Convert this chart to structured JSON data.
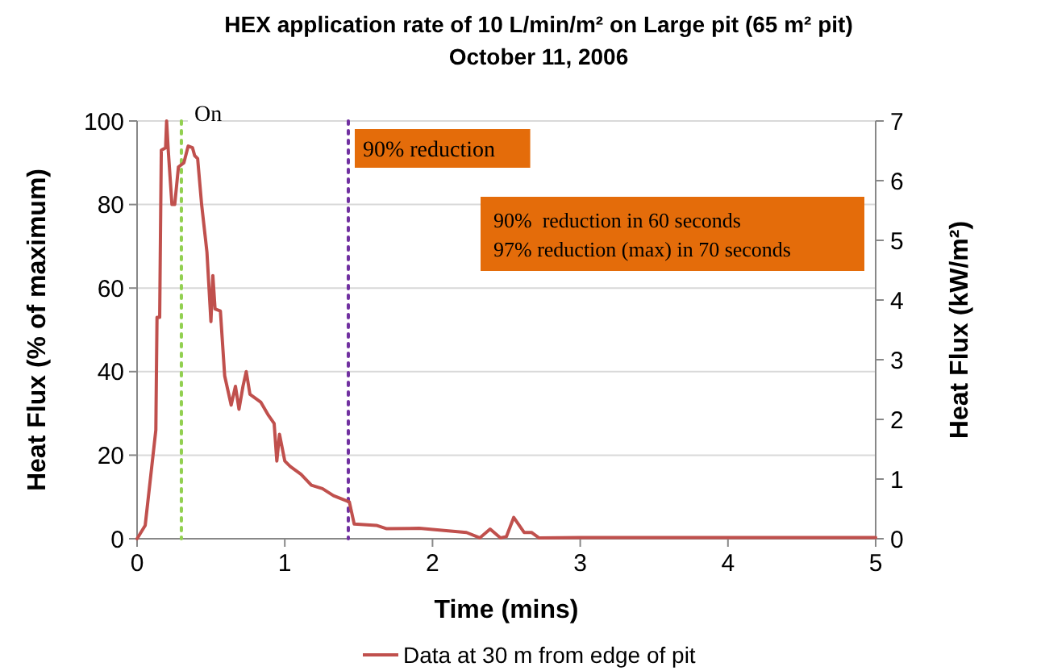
{
  "chart_data": {
    "type": "line",
    "title": "HEX application rate of 10 L/min/m² on Large pit (65 m² pit)",
    "subtitle": "October 11, 2006",
    "xlabel": "Time (mins)",
    "ylabel": "Heat Flux (% of maximum)",
    "y2label": "Heat Flux (kW/m²)",
    "xlim": [
      0,
      5
    ],
    "xticks": [
      0,
      1,
      2,
      3,
      4,
      5
    ],
    "ylim": [
      0,
      100
    ],
    "yticks": [
      0,
      20,
      40,
      60,
      80,
      100
    ],
    "y2lim": [
      0,
      7
    ],
    "y2ticks": [
      0,
      1,
      2,
      3,
      4,
      5,
      6,
      7
    ],
    "grid": "y",
    "legend": "bottom",
    "series": [
      {
        "name": "Data at 30 m from edge of pit",
        "color": "#c0504d",
        "x": [
          0,
          0.055,
          0.127,
          0.135,
          0.153,
          0.164,
          0.193,
          0.2,
          0.211,
          0.236,
          0.255,
          0.28,
          0.317,
          0.346,
          0.375,
          0.39,
          0.41,
          0.437,
          0.473,
          0.5,
          0.513,
          0.528,
          0.564,
          0.593,
          0.637,
          0.666,
          0.69,
          0.717,
          0.739,
          0.764,
          0.837,
          0.89,
          0.928,
          0.946,
          0.964,
          1.0,
          1.037,
          1.11,
          1.18,
          1.255,
          1.33,
          1.437,
          1.47,
          1.62,
          1.69,
          1.91,
          2.23,
          2.32,
          2.39,
          2.46,
          2.5,
          2.55,
          2.62,
          2.67,
          2.72,
          3.0,
          3.5,
          4.0,
          4.5,
          5.0
        ],
        "values": [
          0,
          3.2,
          26,
          53,
          53,
          93,
          93.6,
          100,
          93,
          80,
          80,
          89,
          90,
          94,
          93.6,
          91.7,
          91,
          80,
          68.6,
          52,
          63,
          55,
          54.5,
          39,
          32,
          36.5,
          31,
          36.5,
          40,
          34.6,
          32.7,
          29.5,
          27.6,
          18.6,
          25,
          18.6,
          17.3,
          15.4,
          12.8,
          12,
          10.3,
          8.8,
          3.5,
          3.2,
          2.4,
          2.5,
          1.5,
          0.2,
          2.3,
          0.2,
          0.5,
          5.1,
          1.5,
          1.5,
          0.2,
          0.3,
          0.3,
          0.3,
          0.3,
          0.3
        ]
      }
    ],
    "ref_lines": [
      {
        "axis": "x",
        "value": 0.3,
        "label": "On",
        "color": "#92d050",
        "line_style": "dotted"
      },
      {
        "axis": "x",
        "value": 1.43,
        "label": "90% reduction",
        "color": "#7030a0",
        "line_style": "dotted"
      }
    ],
    "annotations": [
      "90%  reduction in 60 seconds\n97% reduction (max) in 70 seconds"
    ]
  }
}
